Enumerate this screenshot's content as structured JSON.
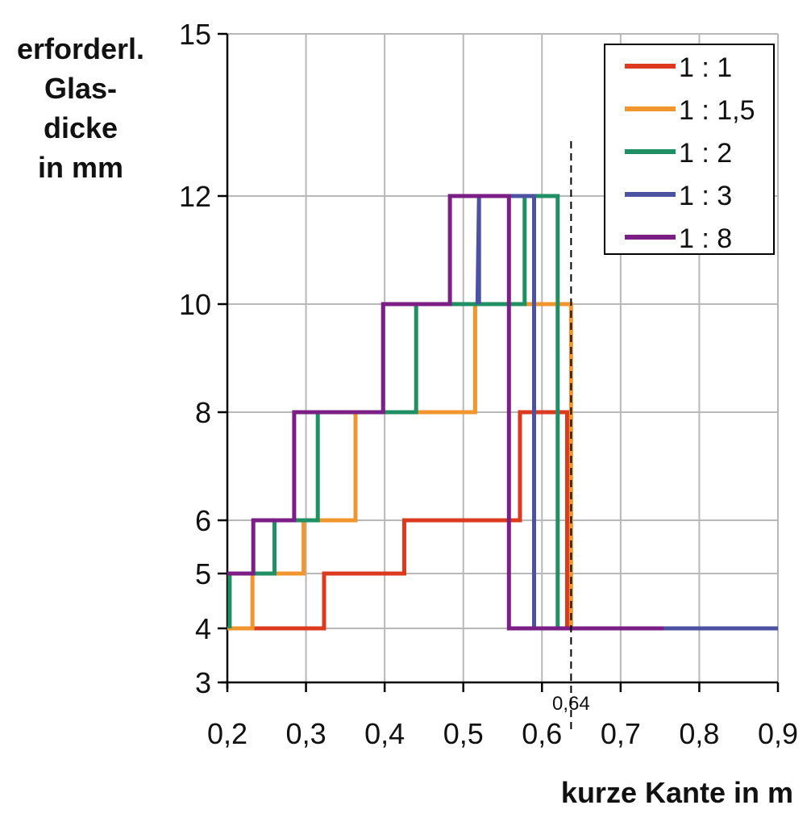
{
  "chart_data": {
    "type": "line",
    "xlabel": "kurze Kante in m",
    "ylabel_lines": [
      "erforderl.",
      "Glas-",
      "dicke",
      "in mm"
    ],
    "xlim": [
      0.2,
      0.9
    ],
    "ylim": [
      3,
      15
    ],
    "x_ticks": [
      "0,2",
      "0,3",
      "0,4",
      "0,5",
      "0,6",
      "0,7",
      "0,8",
      "0,9"
    ],
    "y_ticks": [
      "3",
      "4",
      "5",
      "6",
      "8",
      "10",
      "12",
      "15"
    ],
    "y_tick_values": [
      3,
      4,
      5,
      6,
      8,
      10,
      12,
      15
    ],
    "y_scale": "nonlinear (labelled steps 3,4,5,6,8,10,12,15)",
    "grid": true,
    "legend_position": "top-right",
    "marker": {
      "x": 0.637,
      "label": "0,64",
      "style": "dashed"
    },
    "series": [
      {
        "name": "1 : 1",
        "color": "#dc3a1e",
        "points": [
          [
            0.2,
            4
          ],
          [
            0.323,
            4
          ],
          [
            0.323,
            5
          ],
          [
            0.425,
            5
          ],
          [
            0.425,
            6
          ],
          [
            0.572,
            6
          ],
          [
            0.572,
            8
          ],
          [
            0.632,
            8
          ],
          [
            0.632,
            4
          ],
          [
            0.64,
            4
          ]
        ]
      },
      {
        "name": "1 : 1,5",
        "color": "#f1962e",
        "points": [
          [
            0.2,
            4
          ],
          [
            0.232,
            4
          ],
          [
            0.232,
            5
          ],
          [
            0.297,
            5
          ],
          [
            0.297,
            6
          ],
          [
            0.363,
            6
          ],
          [
            0.363,
            8
          ],
          [
            0.515,
            8
          ],
          [
            0.515,
            10
          ],
          [
            0.637,
            10
          ],
          [
            0.637,
            4
          ]
        ]
      },
      {
        "name": "1 : 2",
        "color": "#1f8f64",
        "points": [
          [
            0.203,
            4
          ],
          [
            0.203,
            5
          ],
          [
            0.26,
            5
          ],
          [
            0.26,
            6
          ],
          [
            0.315,
            6
          ],
          [
            0.315,
            8
          ],
          [
            0.44,
            8
          ],
          [
            0.44,
            10
          ],
          [
            0.578,
            10
          ],
          [
            0.578,
            12
          ],
          [
            0.62,
            12
          ],
          [
            0.62,
            4
          ],
          [
            0.624,
            4
          ]
        ]
      },
      {
        "name": "1 : 3",
        "color": "#4b52a0",
        "points": [
          [
            0.59,
            4
          ],
          [
            0.9,
            4
          ],
          [
            0.59,
            4
          ],
          [
            0.59,
            12
          ],
          [
            0.52,
            12
          ],
          [
            0.52,
            10
          ],
          [
            0.52,
            10
          ],
          [
            0.52,
            12
          ],
          [
            0.52,
            12
          ],
          [
            0.518,
            10
          ],
          [
            0.518,
            10
          ]
        ]
      },
      {
        "name": "1 : 8",
        "color": "#7b1e86",
        "points": [
          [
            0.2,
            5
          ],
          [
            0.233,
            5
          ],
          [
            0.233,
            6
          ],
          [
            0.285,
            6
          ],
          [
            0.285,
            8
          ],
          [
            0.398,
            8
          ],
          [
            0.398,
            10
          ],
          [
            0.483,
            10
          ],
          [
            0.483,
            12
          ],
          [
            0.558,
            12
          ],
          [
            0.558,
            4
          ],
          [
            0.755,
            4
          ]
        ]
      }
    ]
  }
}
